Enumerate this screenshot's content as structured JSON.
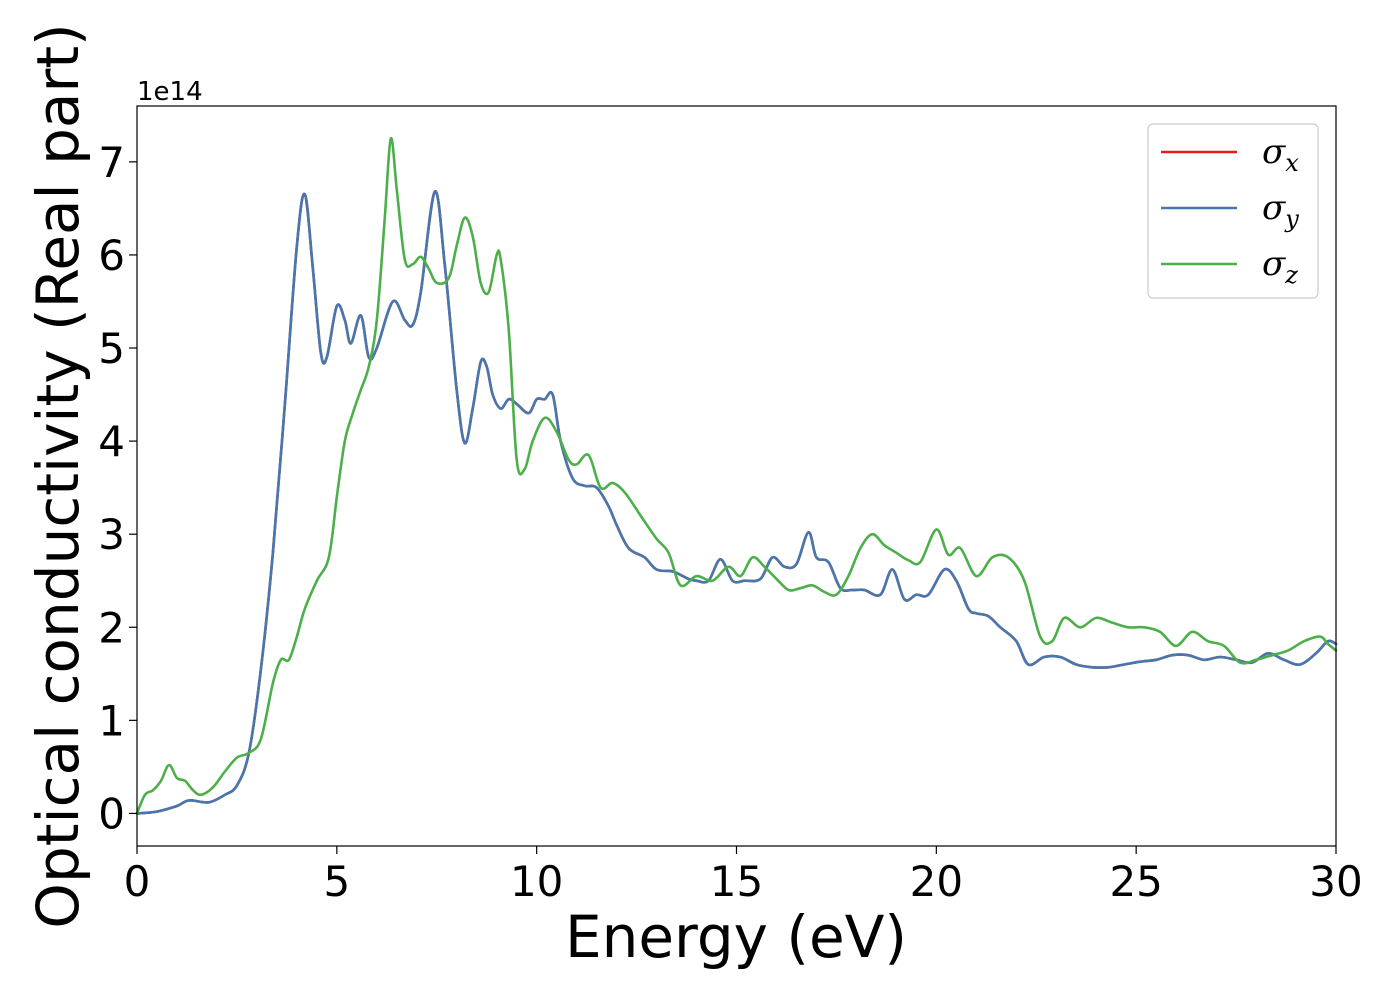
{
  "chart_data": {
    "type": "line",
    "xlabel": "Energy (eV)",
    "ylabel": "Optical conductivity (Real part)",
    "y_offset_label": "1e14",
    "xlim": [
      0,
      30
    ],
    "ylim": [
      -0.35,
      7.6
    ],
    "xticks": [
      0,
      5,
      10,
      15,
      20,
      25,
      30
    ],
    "yticks": [
      0,
      1,
      2,
      3,
      4,
      5,
      6,
      7
    ],
    "grid": false,
    "legend_position": "top-right",
    "series": [
      {
        "name": "σx",
        "symbol": "σ",
        "subscript": "x",
        "color": "#e41a1c",
        "x": [
          0,
          0.5,
          1,
          1.3,
          1.8,
          2.2,
          2.5,
          2.8,
          3.1,
          3.4,
          3.7,
          4.0,
          4.2,
          4.4,
          4.6,
          4.75,
          5.0,
          5.2,
          5.35,
          5.6,
          5.8,
          6.0,
          6.4,
          6.7,
          6.9,
          7.1,
          7.45,
          7.7,
          8.0,
          8.2,
          8.4,
          8.6,
          8.75,
          8.9,
          9.1,
          9.3,
          9.5,
          9.8,
          10.0,
          10.2,
          10.4,
          10.6,
          10.9,
          11.2,
          11.5,
          11.8,
          12.0,
          12.3,
          12.7,
          13.0,
          13.4,
          13.8,
          14.0,
          14.3,
          14.6,
          14.9,
          15.2,
          15.6,
          15.9,
          16.2,
          16.5,
          16.8,
          17.0,
          17.3,
          17.6,
          17.9,
          18.2,
          18.6,
          18.9,
          19.2,
          19.5,
          19.8,
          20.2,
          20.5,
          20.8,
          21.0,
          21.3,
          21.6,
          22.0,
          22.3,
          22.7,
          23.1,
          23.5,
          23.9,
          24.3,
          24.7,
          25.1,
          25.5,
          25.9,
          26.3,
          26.7,
          27.1,
          27.5,
          27.9,
          28.3,
          28.7,
          29.1,
          29.5,
          29.8,
          30.0
        ],
        "y": [
          0,
          0.02,
          0.08,
          0.14,
          0.12,
          0.2,
          0.3,
          0.65,
          1.55,
          2.8,
          4.4,
          6.1,
          6.65,
          5.85,
          4.95,
          4.9,
          5.45,
          5.3,
          5.05,
          5.35,
          4.9,
          5.0,
          5.5,
          5.3,
          5.25,
          5.6,
          6.68,
          5.9,
          4.55,
          3.98,
          4.35,
          4.85,
          4.8,
          4.5,
          4.35,
          4.45,
          4.4,
          4.3,
          4.45,
          4.45,
          4.5,
          4.0,
          3.6,
          3.52,
          3.5,
          3.3,
          3.1,
          2.85,
          2.75,
          2.62,
          2.6,
          2.52,
          2.5,
          2.5,
          2.73,
          2.5,
          2.5,
          2.52,
          2.75,
          2.65,
          2.68,
          3.02,
          2.75,
          2.7,
          2.42,
          2.4,
          2.4,
          2.35,
          2.62,
          2.3,
          2.35,
          2.35,
          2.62,
          2.5,
          2.2,
          2.15,
          2.12,
          2.0,
          1.85,
          1.6,
          1.68,
          1.68,
          1.6,
          1.57,
          1.57,
          1.6,
          1.63,
          1.65,
          1.7,
          1.7,
          1.65,
          1.68,
          1.65,
          1.62,
          1.72,
          1.65,
          1.6,
          1.72,
          1.85,
          1.82
        ]
      },
      {
        "name": "σy",
        "symbol": "σ",
        "subscript": "y",
        "color": "#4678b0",
        "x": [
          0,
          0.5,
          1,
          1.3,
          1.8,
          2.2,
          2.5,
          2.8,
          3.1,
          3.4,
          3.7,
          4.0,
          4.2,
          4.4,
          4.6,
          4.75,
          5.0,
          5.2,
          5.35,
          5.6,
          5.8,
          6.0,
          6.4,
          6.7,
          6.9,
          7.1,
          7.45,
          7.7,
          8.0,
          8.2,
          8.4,
          8.6,
          8.75,
          8.9,
          9.1,
          9.3,
          9.5,
          9.8,
          10.0,
          10.2,
          10.4,
          10.6,
          10.9,
          11.2,
          11.5,
          11.8,
          12.0,
          12.3,
          12.7,
          13.0,
          13.4,
          13.8,
          14.0,
          14.3,
          14.6,
          14.9,
          15.2,
          15.6,
          15.9,
          16.2,
          16.5,
          16.8,
          17.0,
          17.3,
          17.6,
          17.9,
          18.2,
          18.6,
          18.9,
          19.2,
          19.5,
          19.8,
          20.2,
          20.5,
          20.8,
          21.0,
          21.3,
          21.6,
          22.0,
          22.3,
          22.7,
          23.1,
          23.5,
          23.9,
          24.3,
          24.7,
          25.1,
          25.5,
          25.9,
          26.3,
          26.7,
          27.1,
          27.5,
          27.9,
          28.3,
          28.7,
          29.1,
          29.5,
          29.8,
          30.0
        ],
        "y": [
          0,
          0.02,
          0.08,
          0.14,
          0.12,
          0.2,
          0.3,
          0.65,
          1.55,
          2.8,
          4.4,
          6.1,
          6.65,
          5.85,
          4.95,
          4.9,
          5.45,
          5.3,
          5.05,
          5.35,
          4.9,
          5.0,
          5.5,
          5.3,
          5.25,
          5.6,
          6.68,
          5.9,
          4.55,
          3.98,
          4.35,
          4.85,
          4.8,
          4.5,
          4.35,
          4.45,
          4.4,
          4.3,
          4.45,
          4.45,
          4.5,
          4.0,
          3.6,
          3.52,
          3.5,
          3.3,
          3.1,
          2.85,
          2.75,
          2.62,
          2.6,
          2.52,
          2.5,
          2.5,
          2.73,
          2.5,
          2.5,
          2.52,
          2.75,
          2.65,
          2.68,
          3.02,
          2.75,
          2.7,
          2.42,
          2.4,
          2.4,
          2.35,
          2.62,
          2.3,
          2.35,
          2.35,
          2.62,
          2.5,
          2.2,
          2.15,
          2.12,
          2.0,
          1.85,
          1.6,
          1.68,
          1.68,
          1.6,
          1.57,
          1.57,
          1.6,
          1.63,
          1.65,
          1.7,
          1.7,
          1.65,
          1.68,
          1.65,
          1.62,
          1.72,
          1.65,
          1.6,
          1.72,
          1.85,
          1.82
        ]
      },
      {
        "name": "σz",
        "symbol": "σ",
        "subscript": "z",
        "color": "#4daf4a",
        "x": [
          0,
          0.2,
          0.4,
          0.6,
          0.8,
          1.0,
          1.2,
          1.4,
          1.6,
          1.9,
          2.2,
          2.5,
          2.8,
          3.1,
          3.4,
          3.6,
          3.8,
          4.0,
          4.2,
          4.5,
          4.8,
          5.0,
          5.2,
          5.4,
          5.6,
          5.8,
          6.0,
          6.2,
          6.35,
          6.5,
          6.7,
          6.9,
          7.1,
          7.3,
          7.5,
          7.8,
          8.0,
          8.2,
          8.4,
          8.6,
          8.8,
          9.0,
          9.1,
          9.3,
          9.5,
          9.7,
          9.9,
          10.2,
          10.5,
          10.8,
          11.0,
          11.3,
          11.6,
          11.9,
          12.2,
          12.6,
          13.0,
          13.3,
          13.6,
          14.0,
          14.4,
          14.8,
          15.1,
          15.4,
          15.7,
          16.0,
          16.3,
          16.6,
          16.9,
          17.2,
          17.5,
          17.8,
          18.1,
          18.4,
          18.7,
          19.0,
          19.3,
          19.6,
          20.0,
          20.3,
          20.6,
          21.0,
          21.4,
          21.8,
          22.2,
          22.6,
          22.9,
          23.2,
          23.6,
          24.0,
          24.4,
          24.8,
          25.2,
          25.6,
          26.0,
          26.4,
          26.8,
          27.2,
          27.6,
          28.0,
          28.4,
          28.8,
          29.2,
          29.6,
          29.8,
          30.0
        ],
        "y": [
          0,
          0.2,
          0.25,
          0.35,
          0.52,
          0.38,
          0.35,
          0.25,
          0.2,
          0.28,
          0.45,
          0.6,
          0.65,
          0.8,
          1.4,
          1.65,
          1.65,
          1.9,
          2.2,
          2.5,
          2.75,
          3.4,
          4.0,
          4.3,
          4.55,
          4.8,
          5.3,
          6.4,
          7.25,
          6.7,
          5.95,
          5.9,
          5.98,
          5.85,
          5.7,
          5.75,
          6.1,
          6.4,
          6.2,
          5.7,
          5.6,
          6.0,
          5.95,
          5.2,
          3.8,
          3.7,
          4.0,
          4.25,
          4.1,
          3.8,
          3.75,
          3.85,
          3.5,
          3.55,
          3.45,
          3.2,
          2.95,
          2.8,
          2.45,
          2.55,
          2.5,
          2.65,
          2.55,
          2.75,
          2.65,
          2.52,
          2.4,
          2.42,
          2.45,
          2.38,
          2.35,
          2.55,
          2.85,
          3.0,
          2.88,
          2.8,
          2.72,
          2.7,
          3.05,
          2.78,
          2.85,
          2.55,
          2.75,
          2.75,
          2.5,
          1.9,
          1.85,
          2.1,
          2.0,
          2.1,
          2.05,
          2.0,
          2.0,
          1.95,
          1.8,
          1.95,
          1.85,
          1.8,
          1.62,
          1.65,
          1.7,
          1.75,
          1.85,
          1.9,
          1.82,
          1.75
        ]
      }
    ]
  }
}
